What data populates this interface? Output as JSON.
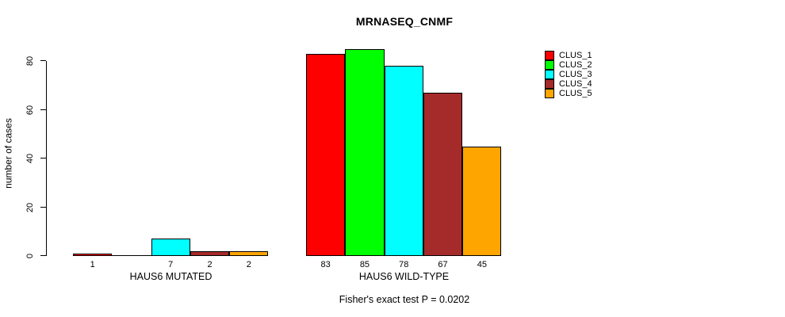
{
  "chart_data": {
    "type": "bar",
    "title": "MRNASEQ_CNMF",
    "ylabel": "number of cases",
    "xlabel": "",
    "yticks": [
      0,
      20,
      40,
      60,
      80
    ],
    "ylim": [
      0,
      85
    ],
    "grid": false,
    "legend_position": "top-right",
    "categories": [
      "HAUS6 MUTATED",
      "HAUS6 WILD-TYPE"
    ],
    "series": [
      {
        "name": "CLUS_1",
        "color": "#FF0000",
        "values": [
          1,
          83
        ]
      },
      {
        "name": "CLUS_2",
        "color": "#00FF00",
        "values": [
          0,
          85
        ]
      },
      {
        "name": "CLUS_3",
        "color": "#00FFFF",
        "values": [
          7,
          78
        ]
      },
      {
        "name": "CLUS_4",
        "color": "#A52A2A",
        "values": [
          2,
          67
        ]
      },
      {
        "name": "CLUS_5",
        "color": "#FFA500",
        "values": [
          2,
          45
        ]
      }
    ],
    "bar_value_labels": [
      [
        "1",
        "",
        "7",
        "2",
        "2"
      ],
      [
        "83",
        "85",
        "78",
        "67",
        "45"
      ]
    ],
    "annotation": "Fisher's exact test P = 0.0202"
  }
}
